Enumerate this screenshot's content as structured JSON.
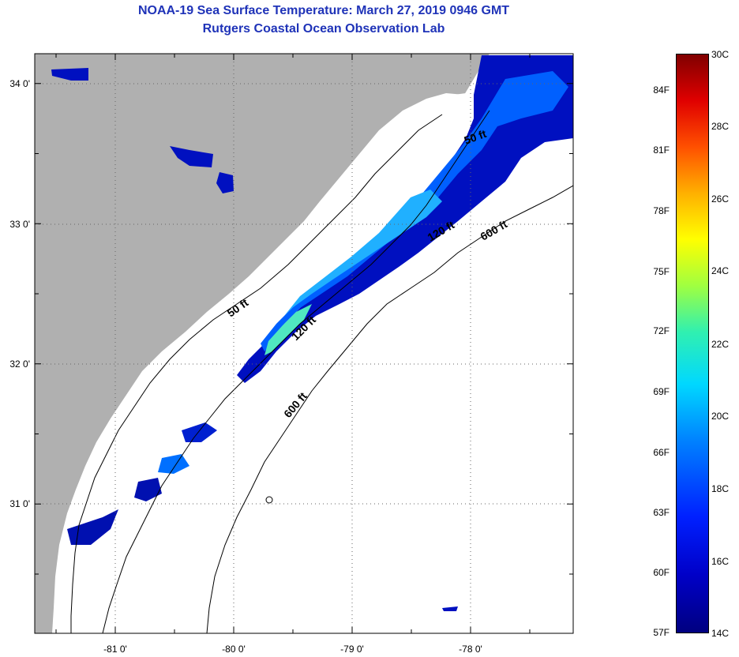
{
  "title": {
    "line1": "NOAA-19 Sea Surface Temperature:  March 27, 2019 0946 GMT",
    "line2": "Rutgers Coastal Ocean Observation Lab"
  },
  "axes": {
    "lon_labels": [
      "-81 0'",
      "-80 0'",
      "-79 0'",
      "-78 0'"
    ],
    "lat_labels": [
      "34 0'",
      "33 0'",
      "32 0'",
      "31 0'"
    ]
  },
  "contours": {
    "c50_a": "50 ft",
    "c50_b": "50 ft",
    "c120_a": "120 ft",
    "c120_b": "120 ft",
    "c600_a": "600 ft",
    "c600_b": "600 ft"
  },
  "colorbar": {
    "fahrenheit": [
      "84F",
      "81F",
      "78F",
      "75F",
      "72F",
      "69F",
      "66F",
      "63F",
      "60F",
      "57F"
    ],
    "celsius": [
      "30C",
      "28C",
      "26C",
      "24C",
      "22C",
      "20C",
      "18C",
      "16C",
      "14C"
    ]
  },
  "colors": {
    "land": "#b0b0b0",
    "ocean": "#ffffff",
    "title": "#1f33b8",
    "sst_cold": "#0000b0",
    "sst_mid": "#0090ff",
    "sst_warm": "#40e0c0"
  }
}
